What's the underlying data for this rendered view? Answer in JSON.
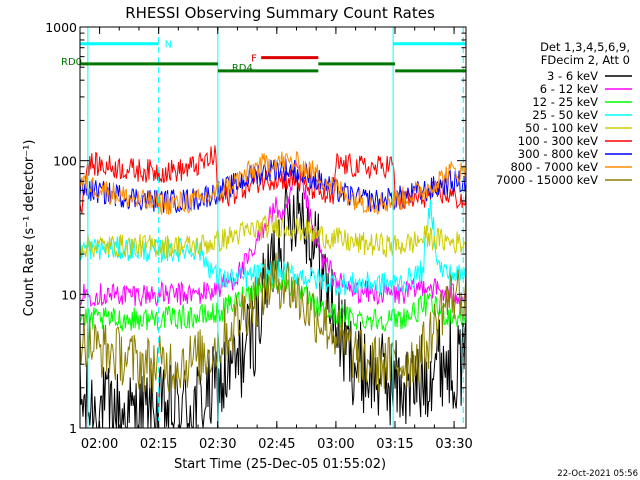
{
  "chart_data": {
    "type": "line",
    "title": "RHESSI Observing Summary Count Rates",
    "xlabel": "Start Time (25-Dec-05 01:55:02)",
    "ylabel": "Count Rate (s⁻¹ detector⁻¹)",
    "x_start": "01:55:02",
    "x_unit": "minutes",
    "xlim": [
      0,
      98
    ],
    "ylim": [
      1,
      1000
    ],
    "y_scale": "log",
    "x_ticks": [
      {
        "label": "02:00",
        "value": 4.97
      },
      {
        "label": "02:15",
        "value": 19.97
      },
      {
        "label": "02:30",
        "value": 34.97
      },
      {
        "label": "02:45",
        "value": 49.97
      },
      {
        "label": "03:00",
        "value": 64.97
      },
      {
        "label": "03:15",
        "value": 79.97
      },
      {
        "label": "03:30",
        "value": 94.97
      }
    ],
    "y_ticks": [
      {
        "label": "1",
        "value": 1
      },
      {
        "label": "10",
        "value": 10
      },
      {
        "label": "100",
        "value": 100
      },
      {
        "label": "1000",
        "value": 1000
      }
    ],
    "legend_header": [
      "Det 1,3,4,5,6,9,",
      "FDecim 2, Att 0"
    ],
    "legend_position": "right",
    "series": [
      {
        "name": "3 - 6 keV",
        "color": "#000000",
        "x": [
          0,
          4,
          9,
          14,
          20,
          25,
          30,
          35,
          40,
          45,
          48,
          50,
          52,
          55,
          57,
          60,
          63,
          66,
          70,
          75,
          80,
          84,
          88,
          90,
          93,
          96,
          98
        ],
        "y": [
          1.5,
          1.4,
          1.3,
          1.2,
          1.3,
          1.4,
          1.5,
          2.0,
          3.0,
          6.0,
          14,
          25,
          30,
          52,
          40,
          22,
          10,
          5,
          3,
          2.4,
          2.2,
          2.0,
          2.5,
          3.3,
          3.2,
          3.0,
          3.0
        ]
      },
      {
        "name": "6 - 12 keV",
        "color": "#ff00ff",
        "x": [
          0,
          10,
          20,
          30,
          35,
          40,
          44,
          47,
          50,
          52,
          55,
          57,
          59,
          62,
          66,
          70,
          80,
          84,
          88,
          90,
          93,
          98
        ],
        "y": [
          10,
          10,
          10,
          10,
          11,
          14,
          20,
          35,
          45,
          36,
          88,
          60,
          30,
          17,
          12,
          10.5,
          10,
          10.5,
          12,
          11,
          10,
          10
        ]
      },
      {
        "name": "12 - 25 keV",
        "color": "#00ff00",
        "x": [
          0,
          10,
          20,
          30,
          35,
          40,
          45,
          50,
          55,
          60,
          65,
          70,
          80,
          84,
          88,
          90,
          93,
          98
        ],
        "y": [
          6.5,
          6.5,
          6.6,
          6.8,
          7.2,
          9.0,
          11.5,
          13,
          11,
          8,
          7,
          6.6,
          6.5,
          7,
          8.5,
          8,
          7,
          6.5
        ]
      },
      {
        "name": "25 - 50 keV",
        "color": "#00ffff",
        "x": [
          0,
          10,
          20,
          30,
          35,
          40,
          45,
          50,
          55,
          60,
          65,
          70,
          80,
          84,
          87,
          89,
          91,
          94,
          98
        ],
        "y": [
          22,
          22,
          21,
          22,
          13,
          13,
          14,
          15,
          14,
          13,
          12,
          12,
          12,
          13,
          15,
          50,
          16,
          14,
          14
        ]
      },
      {
        "name": "50 - 100 keV",
        "color": "#cccc00",
        "x": [
          0,
          10,
          20,
          30,
          35,
          40,
          45,
          50,
          55,
          60,
          65,
          70,
          80,
          84,
          88,
          90,
          93,
          98
        ],
        "y": [
          23,
          23,
          23,
          23,
          25,
          28,
          31,
          33,
          31,
          28,
          26,
          24,
          23,
          24,
          27,
          26,
          25,
          24
        ]
      },
      {
        "name": "100 - 300 keV",
        "color": "#ff0000",
        "x": [
          0,
          2,
          8,
          14,
          20,
          26,
          31,
          34.5,
          35,
          40,
          45,
          50,
          55,
          60,
          64.5,
          65,
          70,
          75,
          79.5,
          80,
          84,
          88,
          91,
          94,
          97,
          98
        ],
        "y": [
          40,
          95,
          90,
          85,
          83,
          85,
          95,
          110,
          50,
          60,
          70,
          75,
          70,
          60,
          50,
          95,
          90,
          88,
          95,
          50,
          50,
          55,
          58,
          55,
          50,
          50
        ]
      },
      {
        "name": "300 - 800 keV",
        "color": "#0000ff",
        "x": [
          0,
          5,
          10,
          15,
          20,
          25,
          30,
          35,
          40,
          45,
          50,
          55,
          60,
          65,
          70,
          75,
          80,
          84,
          88,
          92,
          95,
          98
        ],
        "y": [
          62,
          58,
          55,
          52,
          50,
          50,
          52,
          58,
          68,
          80,
          88,
          84,
          72,
          60,
          52,
          50,
          52,
          56,
          60,
          66,
          70,
          68
        ]
      },
      {
        "name": "800 - 7000 keV",
        "color": "#ff8c00",
        "x": [
          0,
          5,
          10,
          15,
          20,
          25,
          30,
          35,
          40,
          45,
          50,
          55,
          60,
          65,
          70,
          75,
          80,
          84,
          88,
          92,
          95,
          98
        ],
        "y": [
          68,
          62,
          55,
          50,
          48,
          48,
          50,
          58,
          72,
          90,
          100,
          95,
          80,
          62,
          52,
          48,
          50,
          55,
          62,
          75,
          85,
          80
        ]
      },
      {
        "name": "7000 - 15000 keV",
        "color": "#8b7d00",
        "x": [
          0,
          4,
          10,
          16,
          22,
          28,
          32,
          36,
          40,
          44,
          48,
          50,
          53,
          56,
          60,
          64,
          68,
          72,
          76,
          80,
          84,
          88,
          92,
          95,
          98
        ],
        "y": [
          5,
          4,
          3.5,
          3.0,
          3.0,
          3.2,
          3.5,
          4.5,
          6.5,
          9,
          12,
          13,
          12,
          9,
          7,
          5.5,
          4,
          3.2,
          3.0,
          3.0,
          3.2,
          4,
          8,
          10,
          10
        ]
      }
    ],
    "annotations": {
      "top_bars": [
        {
          "label": "N",
          "color": "#00ffff",
          "x": [
            0,
            19.97
          ],
          "y": 750
        },
        {
          "label": "",
          "color": "#00ffff",
          "x": [
            79.5,
            98
          ],
          "y": 750
        },
        {
          "label": "F",
          "color": "#dd0000",
          "x": [
            46,
            60.5
          ],
          "y": 590
        },
        {
          "label": "RD0",
          "color": "#007700",
          "x": [
            0,
            35
          ],
          "y": 530
        },
        {
          "label": "",
          "color": "#007700",
          "x": [
            60.5,
            80
          ],
          "y": 530
        },
        {
          "label": "RD4",
          "color": "#007700",
          "x": [
            35,
            60.5
          ],
          "y": 470
        },
        {
          "label": "",
          "color": "#007700",
          "x": [
            80,
            98
          ],
          "y": 470
        }
      ],
      "vertical_lines": [
        {
          "x": 2,
          "style": "solid"
        },
        {
          "x": 19.97,
          "style": "dashed"
        },
        {
          "x": 35,
          "style": "solid"
        },
        {
          "x": 79.5,
          "style": "solid"
        },
        {
          "x": 97.3,
          "style": "dashed"
        }
      ]
    }
  },
  "footer": {
    "timestamp": "22-Oct-2021 05:56"
  }
}
